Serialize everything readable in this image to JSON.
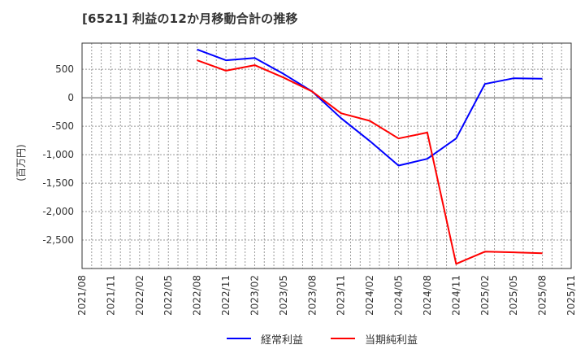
{
  "title": "[6521]  利益の12か月移動合計の推移",
  "y_axis_label": "(百万円)",
  "legend": {
    "items": [
      {
        "label": "経常利益",
        "color": "#0000ff"
      },
      {
        "label": "当期純利益",
        "color": "#ff0000"
      }
    ]
  },
  "chart_data": {
    "type": "line",
    "title": "[6521]  利益の12か月移動合計の推移",
    "xlabel": "",
    "ylabel": "(百万円)",
    "ylim": [
      -3000,
      960
    ],
    "yticks": [
      500,
      0,
      -500,
      -1000,
      -1500,
      -2000,
      -2500
    ],
    "ytick_labels": [
      "500",
      "0",
      "-500",
      "-1,000",
      "-1,500",
      "-2,000",
      "-2,500"
    ],
    "xtick_labels": [
      "2021/08",
      "2021/11",
      "2022/02",
      "2022/05",
      "2022/08",
      "2022/11",
      "2023/02",
      "2023/05",
      "2023/08",
      "2023/11",
      "2024/02",
      "2024/05",
      "2024/08",
      "2024/11",
      "2025/02",
      "2025/05",
      "2025/08",
      "2025/11"
    ],
    "grid": true,
    "legend_position": "bottom",
    "x": [
      "2022/08",
      "2022/11",
      "2023/02",
      "2023/05",
      "2023/08",
      "2023/11",
      "2024/02",
      "2024/05",
      "2024/08",
      "2024/11",
      "2025/02",
      "2025/05",
      "2025/08"
    ],
    "series": [
      {
        "name": "経常利益",
        "color": "#0000ff",
        "values": [
          848,
          658,
          700,
          420,
          110,
          -358,
          -760,
          -1192,
          -1073,
          -715,
          243,
          343,
          335
        ]
      },
      {
        "name": "当期純利益",
        "color": "#ff0000",
        "values": [
          658,
          476,
          572,
          355,
          110,
          -272,
          -405,
          -715,
          -611,
          -2918,
          -2704,
          -2715,
          -2733
        ]
      }
    ]
  }
}
